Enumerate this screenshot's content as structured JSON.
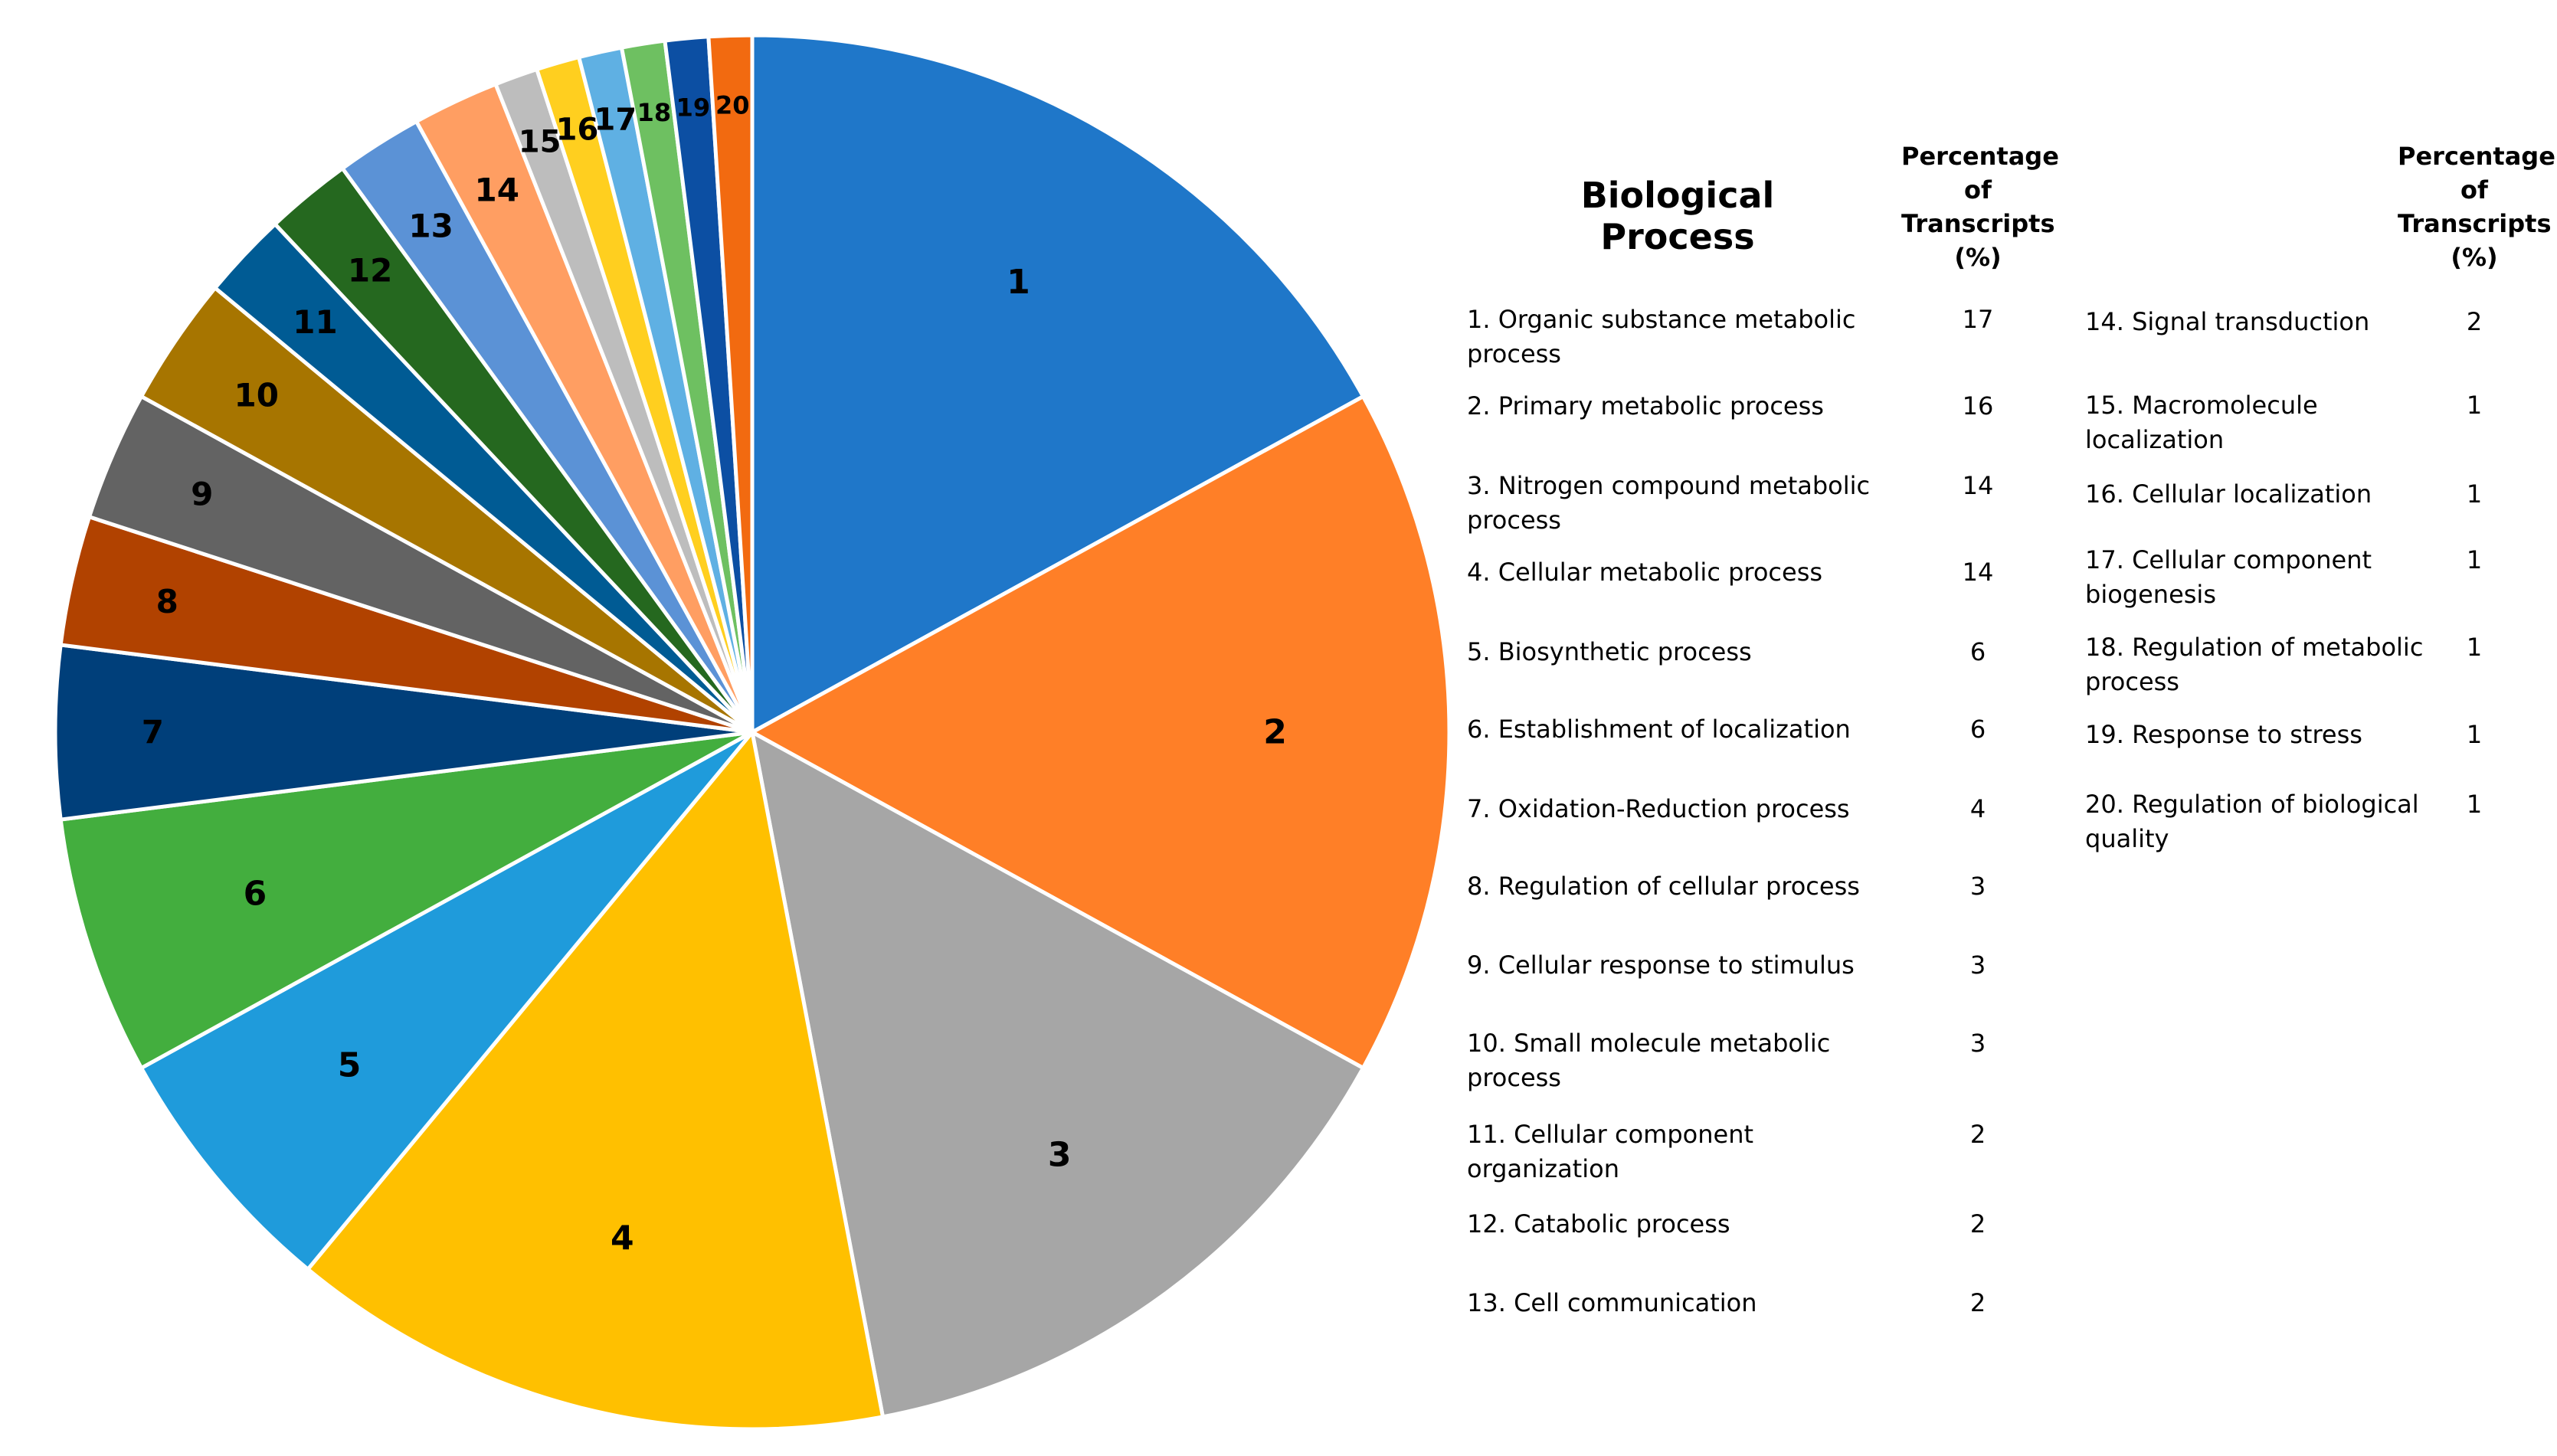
{
  "chart_data": {
    "type": "pie",
    "title": "Biological Process",
    "value_header": "Percentage of Transcripts (%)",
    "slices": [
      {
        "id": "1",
        "label": "1. Organic substance metabolic process",
        "value": 17,
        "color": "#1F77C9"
      },
      {
        "id": "2",
        "label": "2. Primary metabolic process",
        "value": 16,
        "color": "#FF7F27"
      },
      {
        "id": "3",
        "label": "3. Nitrogen compound metabolic process",
        "value": 14,
        "color": "#A6A6A6"
      },
      {
        "id": "4",
        "label": "4. Cellular metabolic process",
        "value": 14,
        "color": "#FFC000"
      },
      {
        "id": "5",
        "label": "5. Biosynthetic process",
        "value": 6,
        "color": "#1F9BDB"
      },
      {
        "id": "6",
        "label": "6. Establishment of localization",
        "value": 6,
        "color": "#43AE3E"
      },
      {
        "id": "7",
        "label": "7. Oxidation-Reduction process",
        "value": 4,
        "color": "#003F7A"
      },
      {
        "id": "8",
        "label": "8. Regulation of cellular process",
        "value": 3,
        "color": "#B14200"
      },
      {
        "id": "9",
        "label": "9. Cellular response to stimulus",
        "value": 3,
        "color": "#636363"
      },
      {
        "id": "10",
        "label": "10. Small molecule metabolic process",
        "value": 3,
        "color": "#A77500"
      },
      {
        "id": "11",
        "label": "11. Cellular component organization",
        "value": 2,
        "color": "#005B94"
      },
      {
        "id": "12",
        "label": "12. Catabolic process",
        "value": 2,
        "color": "#25681F"
      },
      {
        "id": "13",
        "label": "13. Cell communication",
        "value": 2,
        "color": "#5B92D6"
      },
      {
        "id": "14",
        "label": "14. Signal transduction",
        "value": 2,
        "color": "#FF9E62"
      },
      {
        "id": "15",
        "label": "15. Macromolecule localization",
        "value": 1,
        "color": "#BDBDBD"
      },
      {
        "id": "16",
        "label": "16. Cellular localization",
        "value": 1,
        "color": "#FFCF1F"
      },
      {
        "id": "17",
        "label": "17. Cellular component biogenesis",
        "value": 1,
        "color": "#5FB0E3"
      },
      {
        "id": "18",
        "label": "18. Regulation of metabolic process",
        "value": 1,
        "color": "#6EC061"
      },
      {
        "id": "19",
        "label": "19. Response to stress",
        "value": 1,
        "color": "#0C4FA3"
      },
      {
        "id": "20",
        "label": "20. Regulation of biological quality",
        "value": 1,
        "color": "#F26A10"
      }
    ]
  },
  "table": {
    "title": "Biological Process",
    "pct_header_1": "Percentage",
    "pct_header_2": "of",
    "pct_header_3": "Transcripts",
    "pct_header_4": "(%)"
  }
}
